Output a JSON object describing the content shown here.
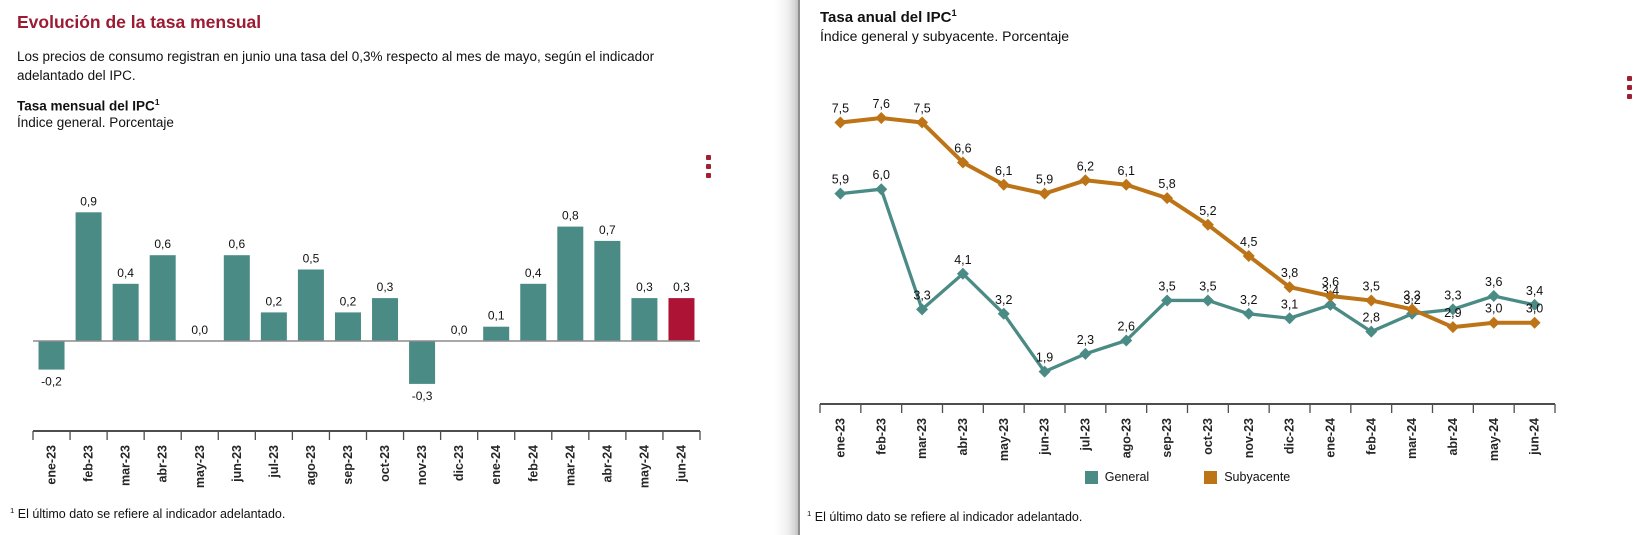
{
  "left_panel": {
    "heading": "Evolución de la tasa mensual",
    "summary": "Los precios de consumo registran en junio una tasa del 0,3% respecto al mes de mayo, según el indicador adelantado del IPC.",
    "chart_title": "Tasa mensual del IPC",
    "chart_title_sup": "1",
    "chart_subtitle": "Índice general. Porcentaje",
    "footnote_sup": "1",
    "footnote": "El último dato se refiere al indicador adelantado.",
    "menu_icon": "kebab-menu-icon"
  },
  "right_panel": {
    "chart_title": "Tasa anual del IPC",
    "chart_title_sup": "1",
    "chart_subtitle": "Índice general y subyacente. Porcentaje",
    "footnote_sup": "1",
    "footnote": "El último dato se refiere al indicador adelantado.",
    "menu_icon": "kebab-menu-icon"
  },
  "colors": {
    "heading_red": "#9C1B33",
    "teal": "#4B8B85",
    "highlight_crimson": "#AC1334",
    "ochre": "#BC7417",
    "kebab_red": "#A21E31",
    "zero_line": "#8C8C8C",
    "axis": "#4D4D4D"
  },
  "chart_data": [
    {
      "type": "bar",
      "title": "Tasa mensual del IPC",
      "subtitle": "Índice general. Porcentaje",
      "categories": [
        "ene-23",
        "feb-23",
        "mar-23",
        "abr-23",
        "may-23",
        "jun-23",
        "jul-23",
        "ago-23",
        "sep-23",
        "oct-23",
        "nov-23",
        "dic-23",
        "ene-24",
        "feb-24",
        "mar-24",
        "abr-24",
        "may-24",
        "jun-24"
      ],
      "values": [
        -0.2,
        0.9,
        0.4,
        0.6,
        0.0,
        0.6,
        0.2,
        0.5,
        0.2,
        0.3,
        -0.3,
        0.0,
        0.1,
        0.4,
        0.8,
        0.7,
        0.3,
        0.3
      ],
      "value_labels": [
        "-0,2",
        "0,9",
        "0,4",
        "0,6",
        "0,0",
        "0,6",
        "0,2",
        "0,5",
        "0,2",
        "0,3",
        "-0,3",
        "0,0",
        "0,1",
        "0,4",
        "0,8",
        "0,7",
        "0,3",
        "0,3"
      ],
      "highlight_index": 17,
      "bar_color": "#4B8B85",
      "highlight_color": "#AC1334",
      "ylim": [
        -0.4,
        1.0
      ],
      "grid": false,
      "xlabel": "",
      "ylabel": ""
    },
    {
      "type": "line",
      "title": "Tasa anual del IPC",
      "subtitle": "Índice general y subyacente. Porcentaje",
      "categories": [
        "ene-23",
        "feb-23",
        "mar-23",
        "abr-23",
        "may-23",
        "jun-23",
        "jul-23",
        "ago-23",
        "sep-23",
        "oct-23",
        "nov-23",
        "dic-23",
        "ene-24",
        "feb-24",
        "mar-24",
        "abr-24",
        "may-24",
        "jun-24"
      ],
      "series": [
        {
          "name": "General",
          "color": "#4B8B85",
          "stroke_width": 3.3,
          "values": [
            5.9,
            6.0,
            3.3,
            4.1,
            3.2,
            1.9,
            2.3,
            2.6,
            3.5,
            3.5,
            3.2,
            3.1,
            3.4,
            2.8,
            3.2,
            3.3,
            3.6,
            3.4
          ],
          "labels": [
            "5,9",
            "6,0",
            "3,3",
            "4,1",
            "3,2",
            "1,9",
            "2,3",
            "2,6",
            "3,5",
            "3,5",
            "3,2",
            "3,1",
            "3,4",
            "2,8",
            "3,2",
            "3,3",
            "3,6",
            "3,4"
          ]
        },
        {
          "name": "Subyacente",
          "color": "#BC7417",
          "stroke_width": 4,
          "values": [
            7.5,
            7.6,
            7.5,
            6.6,
            6.1,
            5.9,
            6.2,
            6.1,
            5.8,
            5.2,
            4.5,
            3.8,
            3.6,
            3.5,
            3.3,
            2.9,
            3.0,
            3.0
          ],
          "labels": [
            "7,5",
            "7,6",
            "7,5",
            "6,6",
            "6,1",
            "5,9",
            "6,2",
            "6,1",
            "5,8",
            "5,2",
            "4,5",
            "3,8",
            "3,6",
            "3,5",
            "3,3",
            "2,9",
            "3,0",
            "3,0"
          ]
        }
      ],
      "marker": "diamond",
      "legend_position": "bottom",
      "ylim": [
        1,
        8
      ],
      "grid": false,
      "xlabel": "",
      "ylabel": ""
    }
  ]
}
